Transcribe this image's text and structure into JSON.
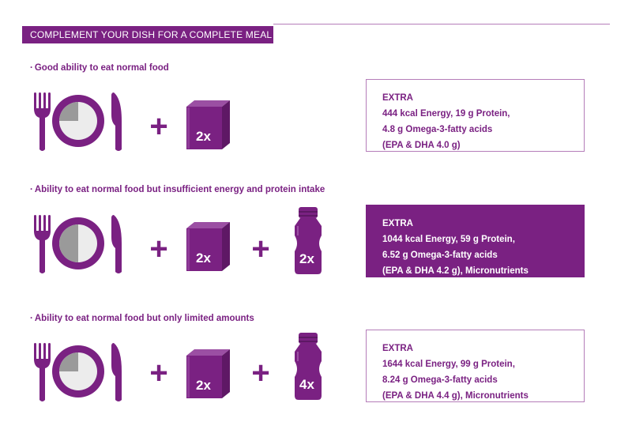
{
  "header": {
    "title": "COMPLEMENT YOUR DISH FOR A COMPLETE MEAL"
  },
  "colors": {
    "accent": "#7a2182",
    "plate_fill": "#9a9a9a",
    "plate_empty": "#ececec",
    "border": "#b57db9"
  },
  "icons": {
    "cutlery": "fork-plate-knife-icon",
    "pack": "drink-carton-icon",
    "bottle": "drink-bottle-icon",
    "plus": "plus-sign"
  },
  "sections": [
    {
      "label": "Good ability to eat normal food",
      "plate_fill_fraction": 0.25,
      "items": [
        {
          "type": "pack",
          "label": "2x"
        }
      ],
      "box": {
        "title": "EXTRA",
        "lines": [
          "444 kcal Energy, 19 g Protein,",
          "4.8 g Omega-3-fatty acids",
          "(EPA & DHA 4.0 g)"
        ],
        "filled": false
      }
    },
    {
      "label": "Ability to eat normal food but insufficient energy and protein intake",
      "plate_fill_fraction": 0.5,
      "items": [
        {
          "type": "pack",
          "label": "2x"
        },
        {
          "type": "bottle",
          "label": "2x"
        }
      ],
      "box": {
        "title": "EXTRA",
        "lines": [
          "1044 kcal Energy, 59 g Protein,",
          "6.52 g Omega-3-fatty acids",
          "(EPA & DHA 4.2 g), Micronutrients"
        ],
        "filled": true
      }
    },
    {
      "label": "Ability to eat normal food but only limited amounts",
      "plate_fill_fraction": 0.25,
      "items": [
        {
          "type": "pack",
          "label": "2x"
        },
        {
          "type": "bottle",
          "label": "4x"
        }
      ],
      "box": {
        "title": "EXTRA",
        "lines": [
          "1644 kcal Energy, 99 g Protein,",
          "8.24 g Omega-3-fatty acids",
          "(EPA & DHA 4.4 g), Micronutrients"
        ],
        "filled": false
      }
    }
  ]
}
